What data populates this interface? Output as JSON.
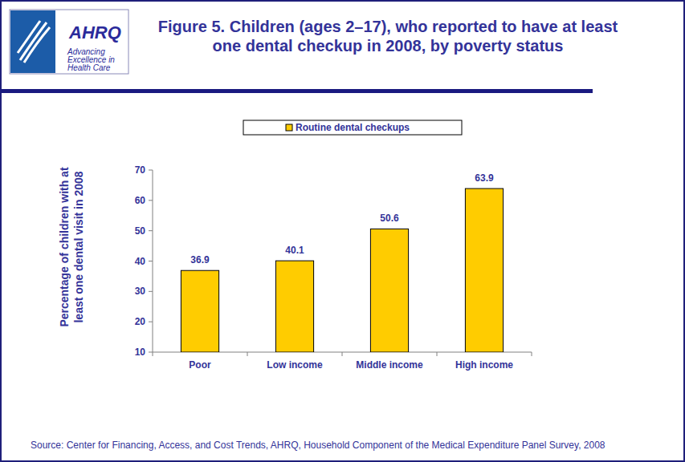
{
  "chart_data": {
    "type": "bar",
    "title": "Figure 5. Children (ages 2–17), who reported to have at least one dental checkup in 2008, by poverty status",
    "y_label": "Percentage of children with at least one dental visit in 2008",
    "categories": [
      "Poor",
      "Low income",
      "Middle income",
      "High income"
    ],
    "series": [
      {
        "name": "Routine dental checkups",
        "color": "#ffcc00",
        "values": [
          36.9,
          40.1,
          50.6,
          63.9
        ]
      }
    ],
    "ylim": [
      10,
      70
    ],
    "yticks": [
      10,
      20,
      30,
      40,
      50,
      60,
      70
    ],
    "grid": false,
    "legend": "top",
    "data_labels": true,
    "source": "Source: Center for Financing, Access, and Cost Trends, AHRQ, Household Component of the Medical Expenditure Panel Survey, 2008",
    "annotations": [
      "AHRQ",
      "Advancing",
      "Excellence in",
      "Health Care"
    ]
  }
}
